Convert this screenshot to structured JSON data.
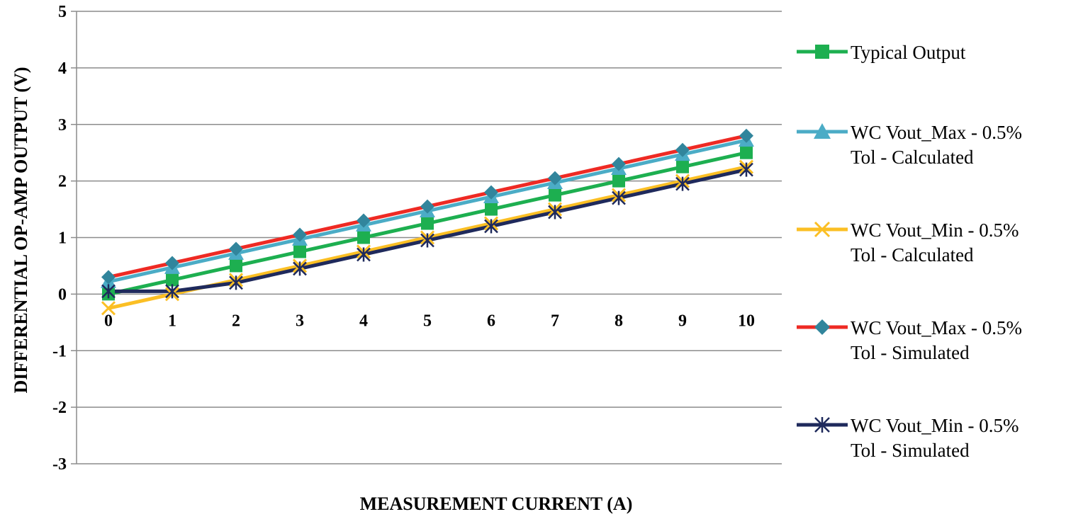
{
  "chart_data": {
    "type": "line",
    "title": "",
    "xlabel": "MEASUREMENT CURRENT (A)",
    "ylabel": "DIFFERENTIAL OP-AMP OUTPUT (V)",
    "ylim": [
      -3,
      5
    ],
    "yticks": [
      "5",
      "4",
      "3",
      "2",
      "1",
      "0",
      "-1",
      "-2",
      "-3"
    ],
    "x": [
      "0",
      "1",
      "2",
      "3",
      "4",
      "5",
      "6",
      "7",
      "8",
      "9",
      "10"
    ],
    "grid": true,
    "legend_position": "right",
    "series": [
      {
        "name_lines": [
          "Typical Output"
        ],
        "color": "#1daf50",
        "marker": "square",
        "values": [
          0,
          0.25,
          0.5,
          0.75,
          1.0,
          1.25,
          1.5,
          1.75,
          2.0,
          2.25,
          2.5
        ]
      },
      {
        "name_lines": [
          "WC Vout_Max - 0.5%",
          "Tol - Calculated"
        ],
        "color": "#4bacc6",
        "marker": "triangle",
        "values": [
          0.22,
          0.47,
          0.72,
          0.97,
          1.22,
          1.47,
          1.72,
          1.97,
          2.22,
          2.47,
          2.72
        ]
      },
      {
        "name_lines": [
          "WC Vout_Min - 0.5%",
          "Tol - Calculated"
        ],
        "color": "#fbbf24",
        "marker": "x",
        "values": [
          -0.25,
          0.0,
          0.25,
          0.5,
          0.75,
          1.0,
          1.25,
          1.5,
          1.75,
          2.0,
          2.25
        ]
      },
      {
        "name_lines": [
          "WC Vout_Max - 0.5%",
          "Tol - Simulated"
        ],
        "color": "#ee2a24",
        "marker": "diamond",
        "values": [
          0.3,
          0.55,
          0.8,
          1.05,
          1.3,
          1.55,
          1.8,
          2.05,
          2.3,
          2.55,
          2.8
        ]
      },
      {
        "name_lines": [
          "WC Vout_Min - 0.5%",
          "Tol - Simulated"
        ],
        "color": "#1f2a5c",
        "marker": "asterisk",
        "values": [
          0.05,
          0.05,
          0.2,
          0.45,
          0.7,
          0.95,
          1.2,
          1.45,
          1.7,
          1.95,
          2.2
        ]
      }
    ],
    "marker_colors": {
      "diamond": "#31859c"
    }
  }
}
